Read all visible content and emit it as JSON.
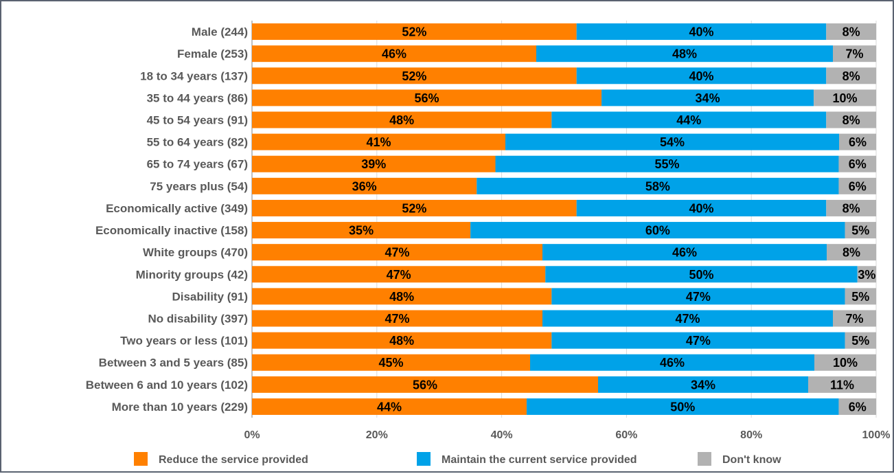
{
  "chart_data": {
    "type": "bar",
    "orientation": "horizontal",
    "stacked": "percent",
    "categories": [
      "Male (244)",
      "Female (253)",
      "18 to 34 years (137)",
      "35 to 44 years (86)",
      "45 to 54 years (91)",
      "55 to 64 years (82)",
      "65 to 74 years (67)",
      "75 years plus (54)",
      "Economically active (349)",
      "Economically inactive (158)",
      "White groups (470)",
      "Minority groups (42)",
      "Disability (91)",
      "No disability (397)",
      "Two years or less (101)",
      "Between 3 and 5 years  (85)",
      "Between 6 and 10 years  (102)",
      "More than 10 years (229)"
    ],
    "series": [
      {
        "name": "Reduce the service provided",
        "color": "#ff8000",
        "values": [
          52,
          46,
          52,
          56,
          48,
          41,
          39,
          36,
          52,
          35,
          47,
          47,
          48,
          47,
          48,
          45,
          56,
          44
        ],
        "labels": [
          "52%",
          "46%",
          "52%",
          "56%",
          "48%",
          "41%",
          "39%",
          "36%",
          "52%",
          "35%",
          "47%",
          "47%",
          "48%",
          "47%",
          "48%",
          "45%",
          "56%",
          "44%"
        ]
      },
      {
        "name": "Maintain the current service provided",
        "color": "#00a2e8",
        "values": [
          40,
          48,
          40,
          34,
          44,
          54,
          55,
          58,
          40,
          60,
          46,
          50,
          47,
          47,
          47,
          46,
          34,
          50
        ],
        "labels": [
          "40%",
          "48%",
          "40%",
          "34%",
          "44%",
          "54%",
          "55%",
          "58%",
          "40%",
          "60%",
          "46%",
          "50%",
          "47%",
          "47%",
          "47%",
          "46%",
          "34%",
          "50%"
        ]
      },
      {
        "name": "Don't know",
        "color": "#b2b2b2",
        "values": [
          8,
          7,
          8,
          10,
          8,
          6,
          6,
          6,
          8,
          5,
          8,
          3,
          5,
          7,
          5,
          10,
          11,
          6
        ],
        "labels": [
          "8%",
          "7%",
          "8%",
          "10%",
          "8%",
          "6%",
          "6%",
          "6%",
          "8%",
          "5%",
          "8%",
          "3%",
          "5%",
          "7%",
          "5%",
          "10%",
          "11%",
          "6%"
        ]
      }
    ],
    "x_ticks": [
      "0%",
      "20%",
      "40%",
      "60%",
      "80%",
      "100%"
    ],
    "xlim": [
      0,
      100
    ],
    "grid": true,
    "legend_position": "bottom"
  }
}
